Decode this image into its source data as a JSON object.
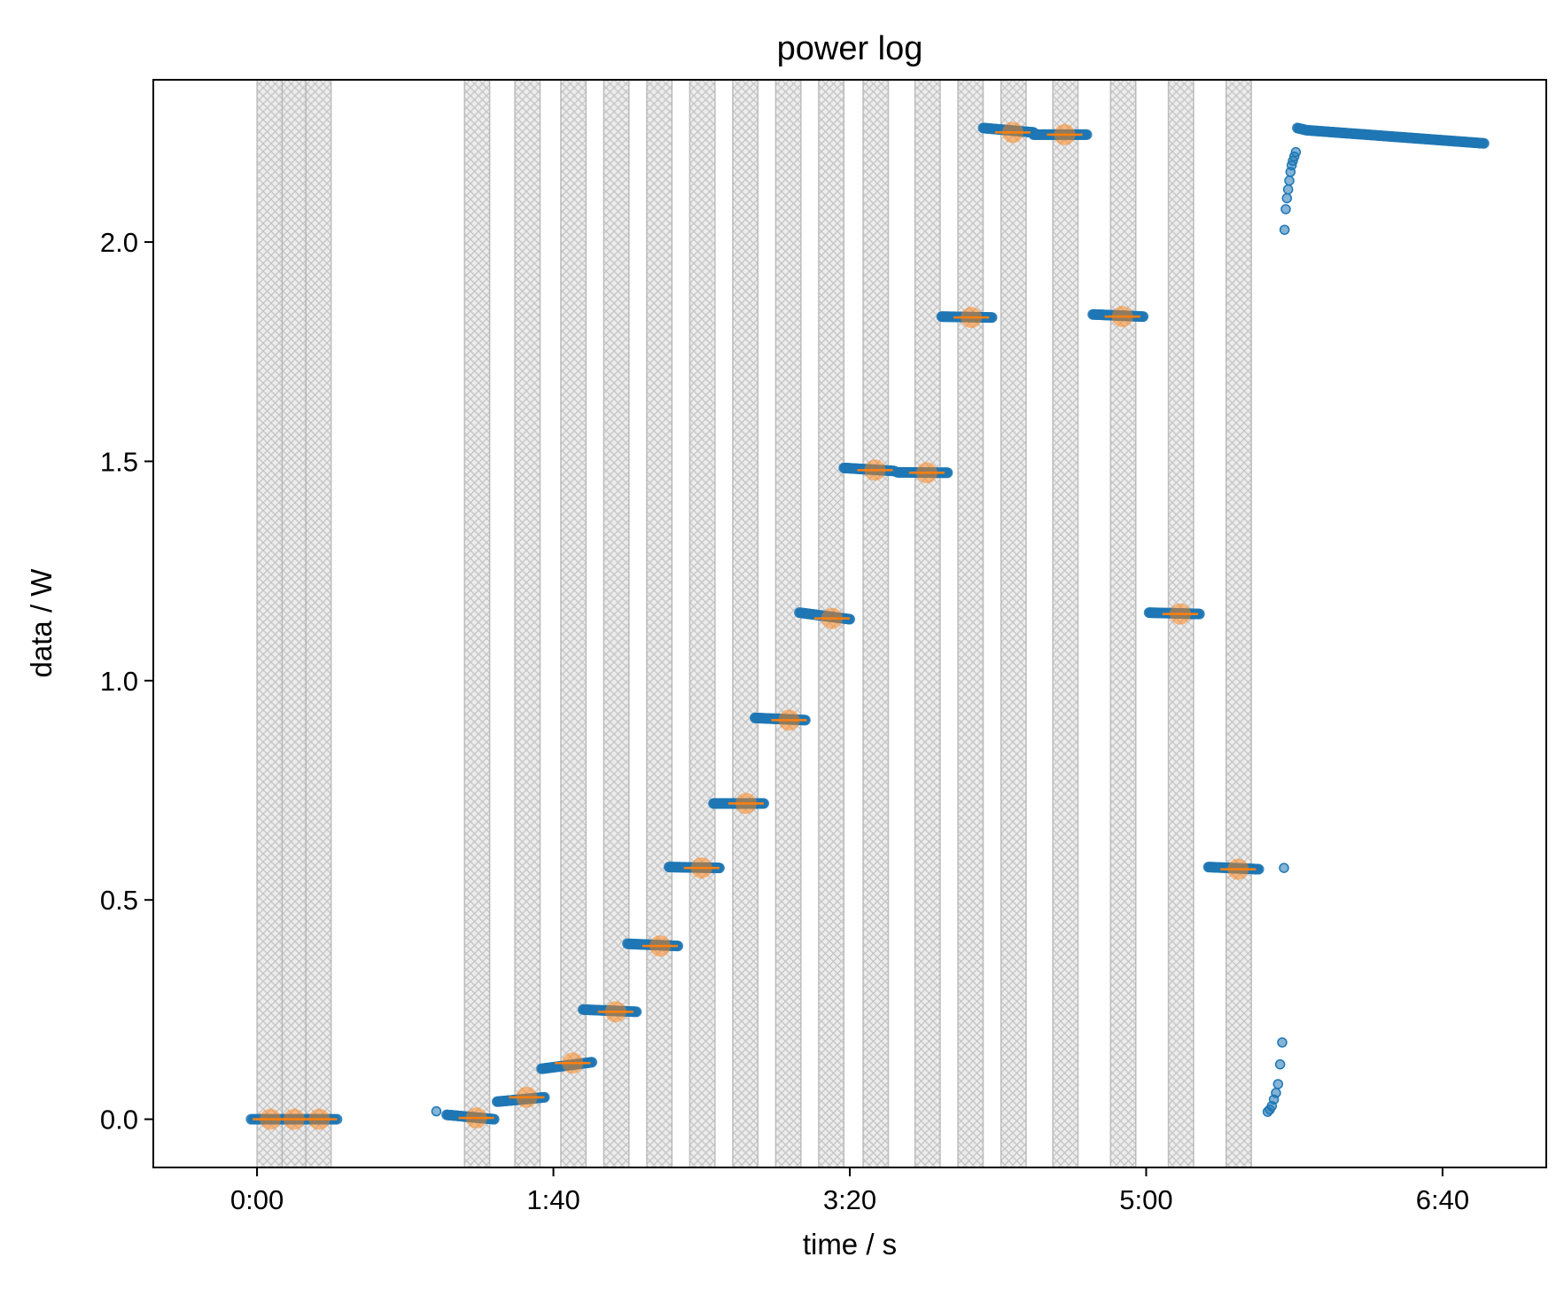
{
  "chart_data": {
    "type": "scatter",
    "title": "power log",
    "xlabel": "time / s",
    "ylabel": "data / W",
    "xlim": [
      -35,
      435
    ],
    "ylim": [
      -0.11,
      2.37
    ],
    "x_ticks": [
      {
        "value": 0,
        "label": "0:00"
      },
      {
        "value": 100,
        "label": "1:40"
      },
      {
        "value": 200,
        "label": "3:20"
      },
      {
        "value": 300,
        "label": "5:00"
      },
      {
        "value": 400,
        "label": "6:40"
      }
    ],
    "y_ticks": [
      {
        "value": 0,
        "label": "0.0"
      },
      {
        "value": 0.5,
        "label": "0.5"
      },
      {
        "value": 1,
        "label": "1.0"
      },
      {
        "value": 1.5,
        "label": "1.5"
      },
      {
        "value": 2,
        "label": "2.0"
      }
    ],
    "grid": false,
    "colors": {
      "raw": "#1f77b4",
      "mean": "#ff7f0e",
      "band_fill": "#d9d9d9",
      "band_edge": "#b0b0b0"
    },
    "shaded_bands": [
      [
        0,
        8.5
      ],
      [
        8.5,
        16.5
      ],
      [
        16.5,
        25
      ],
      [
        70,
        78.5
      ],
      [
        87,
        95.5
      ],
      [
        102.5,
        111
      ],
      [
        117,
        125.5
      ],
      [
        131.5,
        140
      ],
      [
        146,
        154.5
      ],
      [
        160.5,
        169
      ],
      [
        175,
        183.5
      ],
      [
        189.5,
        198
      ],
      [
        204.5,
        213
      ],
      [
        222,
        230.5
      ],
      [
        236.5,
        245
      ],
      [
        251,
        259.5
      ],
      [
        268.5,
        277
      ],
      [
        288,
        296.5
      ],
      [
        307.5,
        316
      ],
      [
        327,
        335.5
      ]
    ],
    "plateaus": [
      {
        "x_start": -2,
        "x_end": 27,
        "y_start": 0.0,
        "y_end": 0.0
      },
      {
        "x_start": 64,
        "x_end": 80,
        "y_start": 0.01,
        "y_end": 0.0
      },
      {
        "x_start": 81,
        "x_end": 97,
        "y_start": 0.04,
        "y_end": 0.05
      },
      {
        "x_start": 96,
        "x_end": 113,
        "y_start": 0.115,
        "y_end": 0.13
      },
      {
        "x_start": 110,
        "x_end": 128,
        "y_start": 0.25,
        "y_end": 0.245
      },
      {
        "x_start": 125,
        "x_end": 142,
        "y_start": 0.4,
        "y_end": 0.395
      },
      {
        "x_start": 139,
        "x_end": 156,
        "y_start": 0.575,
        "y_end": 0.573
      },
      {
        "x_start": 154,
        "x_end": 171,
        "y_start": 0.72,
        "y_end": 0.72
      },
      {
        "x_start": 168,
        "x_end": 185,
        "y_start": 0.915,
        "y_end": 0.91
      },
      {
        "x_start": 183,
        "x_end": 200,
        "y_start": 1.155,
        "y_end": 1.14
      },
      {
        "x_start": 198,
        "x_end": 215,
        "y_start": 1.485,
        "y_end": 1.478
      },
      {
        "x_start": 216,
        "x_end": 233,
        "y_start": 1.475,
        "y_end": 1.474
      },
      {
        "x_start": 231,
        "x_end": 248,
        "y_start": 1.83,
        "y_end": 1.828
      },
      {
        "x_start": 245,
        "x_end": 262,
        "y_start": 2.26,
        "y_end": 2.25
      },
      {
        "x_start": 262,
        "x_end": 280,
        "y_start": 2.245,
        "y_end": 2.245
      },
      {
        "x_start": 282,
        "x_end": 299,
        "y_start": 1.835,
        "y_end": 1.83
      },
      {
        "x_start": 301,
        "x_end": 318,
        "y_start": 1.155,
        "y_end": 1.152
      },
      {
        "x_start": 321,
        "x_end": 338,
        "y_start": 0.575,
        "y_end": 0.57
      }
    ],
    "means": [
      {
        "x": 4.5,
        "y": 0.0
      },
      {
        "x": 12.5,
        "y": 0.0
      },
      {
        "x": 21,
        "y": 0.0
      },
      {
        "x": 74,
        "y": 0.003
      },
      {
        "x": 91,
        "y": 0.05
      },
      {
        "x": 106.5,
        "y": 0.128
      },
      {
        "x": 121,
        "y": 0.245
      },
      {
        "x": 136,
        "y": 0.395
      },
      {
        "x": 150,
        "y": 0.573
      },
      {
        "x": 165,
        "y": 0.72
      },
      {
        "x": 179.5,
        "y": 0.91
      },
      {
        "x": 194,
        "y": 1.142
      },
      {
        "x": 208.5,
        "y": 1.48
      },
      {
        "x": 226,
        "y": 1.474
      },
      {
        "x": 241,
        "y": 1.828
      },
      {
        "x": 255,
        "y": 2.25
      },
      {
        "x": 272.5,
        "y": 2.245
      },
      {
        "x": 292,
        "y": 1.83
      },
      {
        "x": 311.5,
        "y": 1.152
      },
      {
        "x": 331,
        "y": 0.57
      }
    ],
    "isolated_points": [
      {
        "x": 60.5,
        "y": 0.018
      },
      {
        "x": 346.5,
        "y": 0.573
      },
      {
        "x": 341,
        "y": 0.017
      },
      {
        "x": 341.7,
        "y": 0.022
      },
      {
        "x": 342.4,
        "y": 0.03
      },
      {
        "x": 343.1,
        "y": 0.045
      },
      {
        "x": 343.8,
        "y": 0.06
      },
      {
        "x": 344.5,
        "y": 0.08
      },
      {
        "x": 345.2,
        "y": 0.125
      },
      {
        "x": 345.9,
        "y": 0.175
      },
      {
        "x": 346.7,
        "y": 2.028
      },
      {
        "x": 347.1,
        "y": 2.075
      },
      {
        "x": 347.5,
        "y": 2.1
      },
      {
        "x": 347.9,
        "y": 2.12
      },
      {
        "x": 348.3,
        "y": 2.14
      },
      {
        "x": 348.7,
        "y": 2.16
      },
      {
        "x": 349.1,
        "y": 2.175
      },
      {
        "x": 349.5,
        "y": 2.185
      },
      {
        "x": 350,
        "y": 2.195
      },
      {
        "x": 350.5,
        "y": 2.205
      }
    ],
    "tail": {
      "x_start": 351,
      "x_end": 414,
      "y_start": 2.26,
      "y_peak": 2.255,
      "y_end": 2.225
    }
  }
}
